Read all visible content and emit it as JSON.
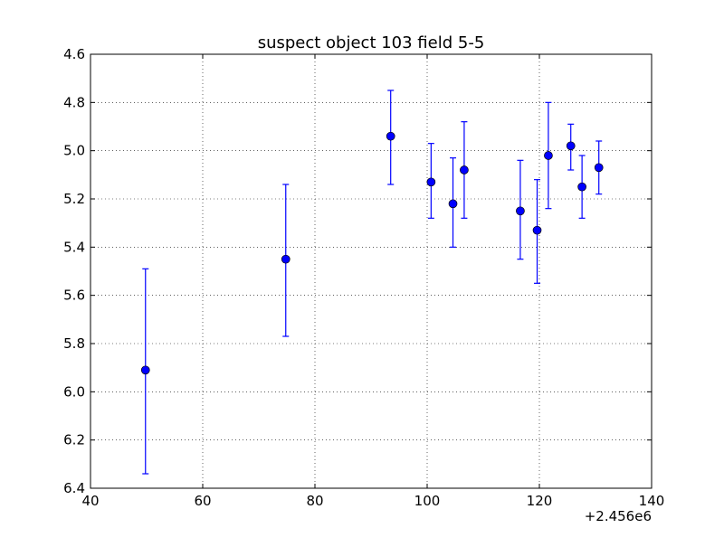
{
  "chart_data": {
    "type": "scatter",
    "title": "suspect object 103 field 5-5",
    "xlabel": "",
    "ylabel": "",
    "x_offset_label": "+2.456e6",
    "xlim": [
      40,
      140
    ],
    "ylim": [
      6.4,
      4.6
    ],
    "y_inverted": true,
    "grid": true,
    "marker_color": "#0000ff",
    "x_ticks": [
      40,
      60,
      80,
      100,
      120,
      140
    ],
    "x_tick_labels": [
      "40",
      "60",
      "80",
      "100",
      "120",
      "140"
    ],
    "y_ticks": [
      4.6,
      4.8,
      5.0,
      5.2,
      5.4,
      5.6,
      5.8,
      6.0,
      6.2,
      6.4
    ],
    "y_tick_labels": [
      "4.6",
      "4.8",
      "5.0",
      "5.2",
      "5.4",
      "5.6",
      "5.8",
      "6.0",
      "6.2",
      "6.4"
    ],
    "points": [
      {
        "x": 49.8,
        "y": 5.91,
        "err_low": 6.34,
        "err_high": 5.49
      },
      {
        "x": 74.8,
        "y": 5.45,
        "err_low": 5.77,
        "err_high": 5.14
      },
      {
        "x": 93.5,
        "y": 4.94,
        "err_low": 5.14,
        "err_high": 4.75
      },
      {
        "x": 100.7,
        "y": 5.13,
        "err_low": 5.28,
        "err_high": 4.97
      },
      {
        "x": 104.6,
        "y": 5.22,
        "err_low": 5.4,
        "err_high": 5.03
      },
      {
        "x": 106.6,
        "y": 5.08,
        "err_low": 5.28,
        "err_high": 4.88
      },
      {
        "x": 116.6,
        "y": 5.25,
        "err_low": 5.45,
        "err_high": 5.04
      },
      {
        "x": 119.6,
        "y": 5.33,
        "err_low": 5.55,
        "err_high": 5.12
      },
      {
        "x": 121.6,
        "y": 5.02,
        "err_low": 5.24,
        "err_high": 4.8
      },
      {
        "x": 125.6,
        "y": 4.98,
        "err_low": 5.08,
        "err_high": 4.89
      },
      {
        "x": 127.6,
        "y": 5.15,
        "err_low": 5.28,
        "err_high": 5.02
      },
      {
        "x": 130.6,
        "y": 5.07,
        "err_low": 5.18,
        "err_high": 4.96
      }
    ]
  }
}
